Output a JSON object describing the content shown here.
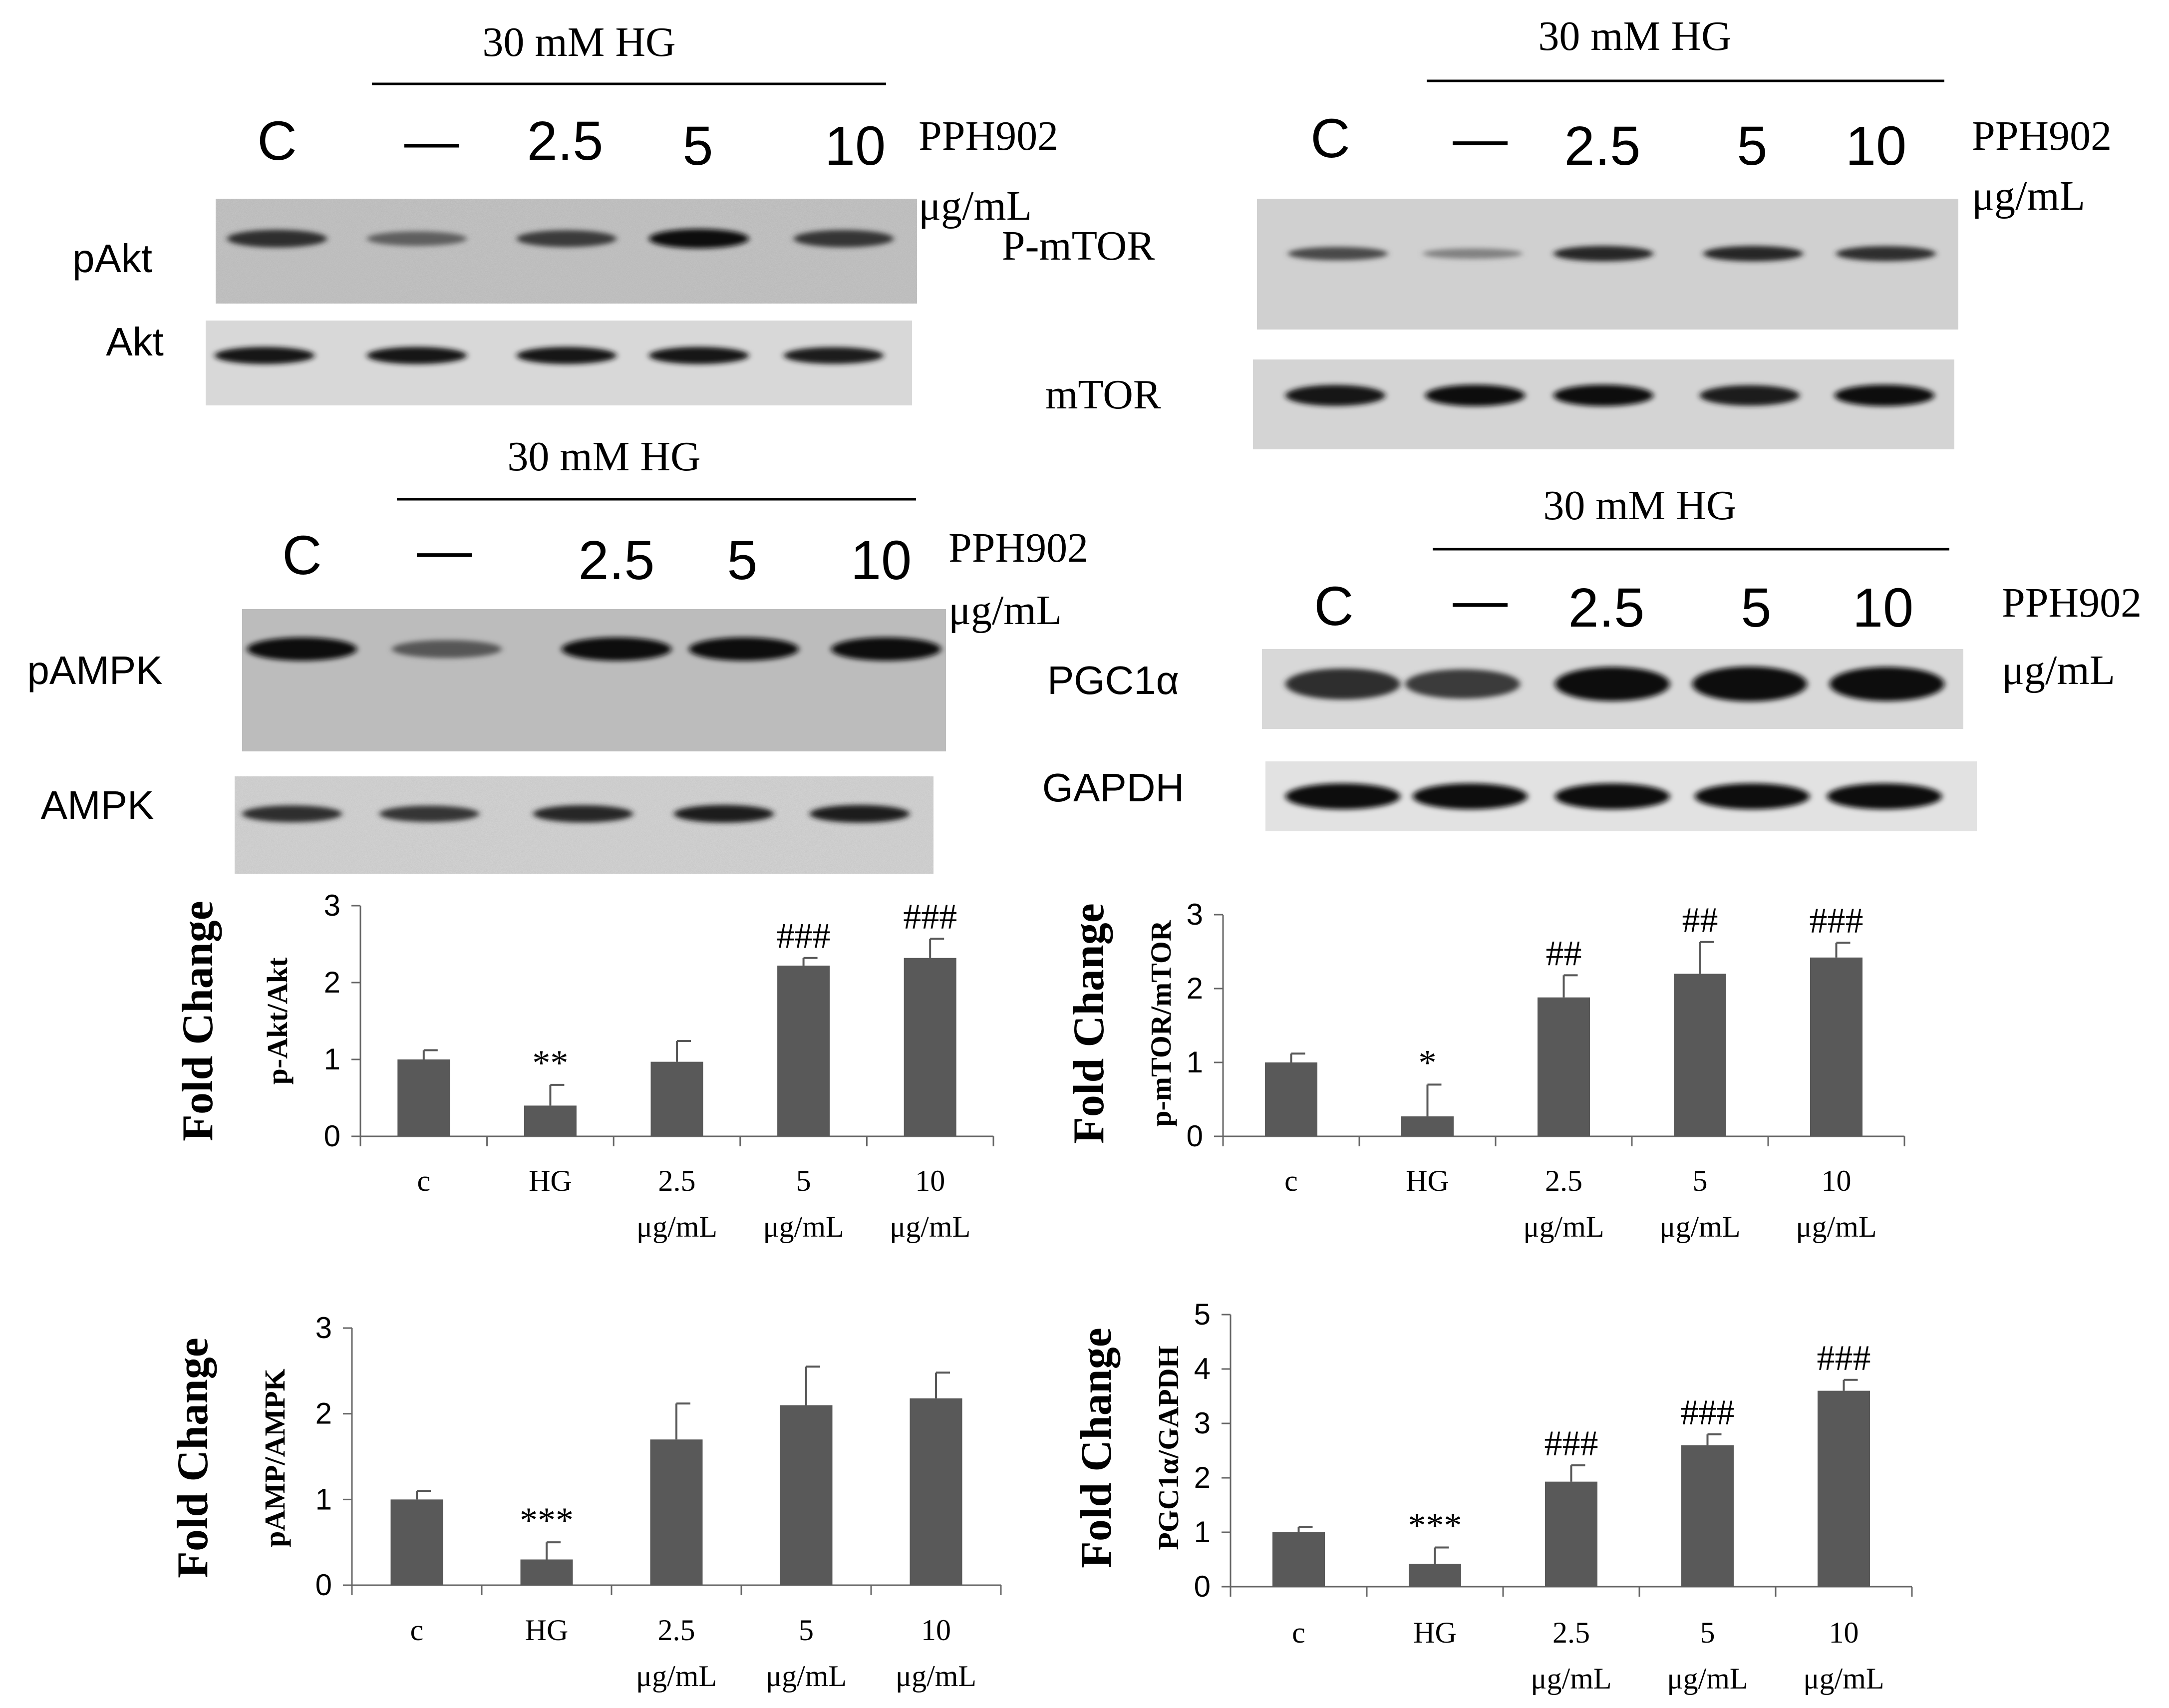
{
  "blots": [
    {
      "id": "akt",
      "treatment_header": "30 mM HG",
      "lanes": [
        "C",
        "—",
        "2.5",
        "5",
        "10"
      ],
      "compound": "PPH902",
      "unit": "μg/mL",
      "rows": [
        {
          "label": "pAkt",
          "intensities": [
            0.75,
            0.4,
            0.65,
            0.95,
            0.7
          ]
        },
        {
          "label": "Akt",
          "intensities": [
            0.9,
            0.9,
            0.9,
            0.9,
            0.85
          ]
        }
      ]
    },
    {
      "id": "mtor",
      "treatment_header": "30 mM HG",
      "lanes": [
        "C",
        "—",
        "2.5",
        "5",
        "10"
      ],
      "compound": "PPH902",
      "unit": "μg/mL",
      "rows": [
        {
          "label": "P-mTOR",
          "intensities": [
            0.55,
            0.15,
            0.8,
            0.8,
            0.75
          ]
        },
        {
          "label": "mTOR",
          "intensities": [
            0.9,
            0.95,
            0.95,
            0.85,
            0.95
          ]
        }
      ]
    },
    {
      "id": "ampk",
      "treatment_header": "30 mM HG",
      "lanes": [
        "C",
        "—",
        "2.5",
        "5",
        "10"
      ],
      "compound": "PPH902",
      "unit": "μg/mL",
      "rows": [
        {
          "label": "pAMPK",
          "intensities": [
            0.95,
            0.45,
            0.95,
            0.95,
            0.95
          ]
        },
        {
          "label": "AMPK",
          "intensities": [
            0.75,
            0.7,
            0.8,
            0.85,
            0.85
          ]
        }
      ]
    },
    {
      "id": "pgc",
      "treatment_header": "30 mM HG",
      "lanes": [
        "C",
        "—",
        "2.5",
        "5",
        "10"
      ],
      "compound": "PPH902",
      "unit": "μg/mL",
      "rows": [
        {
          "label": "PGC1α",
          "intensities": [
            0.75,
            0.65,
            0.95,
            1.0,
            0.95
          ]
        },
        {
          "label": "GAPDH",
          "intensities": [
            1.0,
            1.0,
            1.0,
            1.0,
            1.0
          ]
        }
      ]
    }
  ],
  "chart_data": [
    {
      "type": "bar",
      "ylabel": "Fold Change",
      "ylabel_sub": "p-Akt/Akt",
      "categories": [
        "c",
        "HG",
        "2.5 μg/mL",
        "5 μg/mL",
        "10 μg/mL"
      ],
      "values": [
        1.0,
        0.4,
        0.97,
        2.22,
        2.32
      ],
      "errors": [
        0.12,
        0.27,
        0.27,
        0.1,
        0.25
      ],
      "significance": [
        "",
        "**",
        "",
        "###",
        "###"
      ],
      "ylim": [
        0,
        3
      ],
      "yticks": [
        0,
        1,
        2,
        3
      ]
    },
    {
      "type": "bar",
      "ylabel": "Fold Change",
      "ylabel_sub": "p-mTOR/mTOR",
      "categories": [
        "c",
        "HG",
        "2.5 μg/mL",
        "5 μg/mL",
        "10 μg/mL"
      ],
      "values": [
        1.0,
        0.27,
        1.88,
        2.2,
        2.42
      ],
      "errors": [
        0.12,
        0.43,
        0.3,
        0.43,
        0.2
      ],
      "significance": [
        "",
        "*",
        "##",
        "##",
        "###"
      ],
      "ylim": [
        0,
        3
      ],
      "yticks": [
        0,
        1,
        2,
        3
      ]
    },
    {
      "type": "bar",
      "ylabel": "Fold Change",
      "ylabel_sub": "pAMP/AMPK",
      "categories": [
        "c",
        "HG",
        "2.5 μg/mL",
        "5 μg/mL",
        "10 μg/mL"
      ],
      "values": [
        1.0,
        0.3,
        1.7,
        2.1,
        2.18
      ],
      "errors": [
        0.1,
        0.2,
        0.42,
        0.45,
        0.3
      ],
      "significance": [
        "",
        "***",
        "",
        "",
        ""
      ],
      "ylim": [
        0,
        3
      ],
      "yticks": [
        0,
        1,
        2,
        3
      ]
    },
    {
      "type": "bar",
      "ylabel": "Fold Change",
      "ylabel_sub": "PGC1α/GAPDH",
      "categories": [
        "c",
        "HG",
        "2.5 μg/mL",
        "5 μg/mL",
        "10 μg/mL"
      ],
      "values": [
        1.0,
        0.42,
        1.93,
        2.6,
        3.6
      ],
      "errors": [
        0.1,
        0.3,
        0.3,
        0.2,
        0.2
      ],
      "significance": [
        "",
        "***",
        "###",
        "###",
        "###"
      ],
      "ylim": [
        0,
        5
      ],
      "yticks": [
        0,
        1,
        2,
        3,
        4,
        5
      ]
    }
  ]
}
